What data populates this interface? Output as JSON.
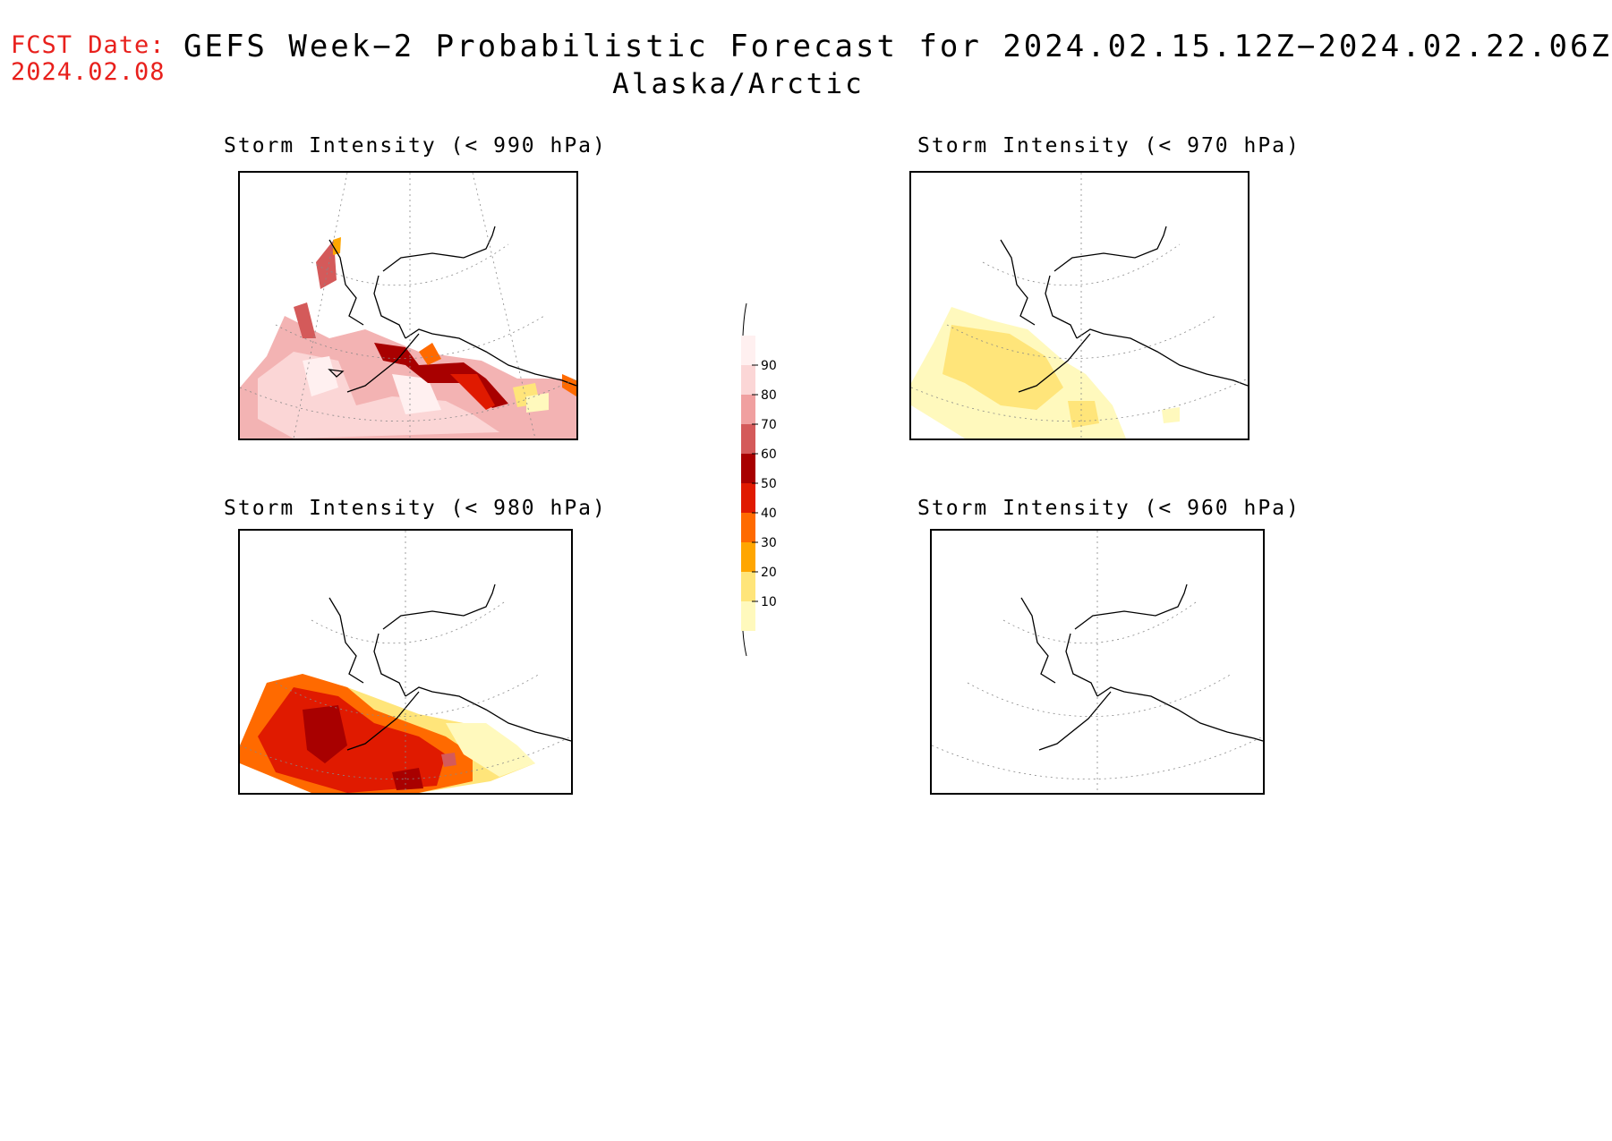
{
  "header": {
    "fcst_label": "FCST Date:",
    "fcst_date": "2024.02.08",
    "title": "GEFS Week−2 Probabilistic Forecast for 2024.02.15.12Z−2024.02.22.06Z",
    "region": "Alaska/Arctic"
  },
  "panels": [
    {
      "id": "p990",
      "title": "Storm Intensity (< 990 hPa)",
      "max_category": "90"
    },
    {
      "id": "p970",
      "title": "Storm Intensity (< 970 hPa)",
      "max_category": "20"
    },
    {
      "id": "p980",
      "title": "Storm Intensity (< 980 hPa)",
      "max_category": "70"
    },
    {
      "id": "p960",
      "title": "Storm Intensity (< 960 hPa)",
      "max_category": "none"
    }
  ],
  "colorbar": {
    "levels": [
      "10",
      "20",
      "30",
      "40",
      "50",
      "60",
      "70",
      "80",
      "90"
    ],
    "colors": [
      "#fff9bd",
      "#ffe57a",
      "#ffa600",
      "#ff6a00",
      "#e01a00",
      "#a80000",
      "#d45a5a",
      "#f0a0a0",
      "#fbd6d6",
      "#fff0f0"
    ]
  }
}
